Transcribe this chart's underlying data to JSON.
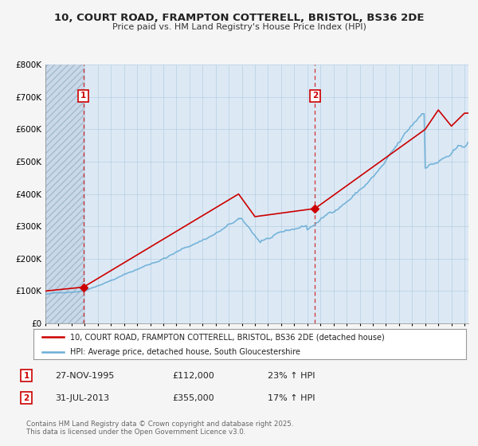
{
  "title": "10, COURT ROAD, FRAMPTON COTTERELL, BRISTOL, BS36 2DE",
  "subtitle": "Price paid vs. HM Land Registry's House Price Index (HPI)",
  "legend_line1": "10, COURT ROAD, FRAMPTON COTTERELL, BRISTOL, BS36 2DE (detached house)",
  "legend_line2": "HPI: Average price, detached house, South Gloucestershire",
  "footer": "Contains HM Land Registry data © Crown copyright and database right 2025.\nThis data is licensed under the Open Government Licence v3.0.",
  "sale1_date": "27-NOV-1995",
  "sale1_price": "£112,000",
  "sale1_hpi": "23% ↑ HPI",
  "sale2_date": "31-JUL-2013",
  "sale2_price": "£355,000",
  "sale2_hpi": "17% ↑ HPI",
  "hpi_color": "#6baed6",
  "price_color": "#cc0000",
  "sale_marker_color": "#cc0000",
  "background_color": "#f5f5f5",
  "plot_bg_color": "#dce9f5",
  "grid_color": "#b8cfe0",
  "ylim": [
    0,
    800000
  ],
  "yticks": [
    0,
    100000,
    200000,
    300000,
    400000,
    500000,
    600000,
    700000,
    800000
  ],
  "ytick_labels": [
    "£0",
    "£100K",
    "£200K",
    "£300K",
    "£400K",
    "£500K",
    "£600K",
    "£700K",
    "£800K"
  ],
  "xlim_start": 1993.0,
  "xlim_end": 2025.3,
  "sale1_year": 1995.9,
  "sale1_value": 112000,
  "sale2_year": 2013.58,
  "sale2_value": 355000,
  "hatch_end": 1995.9
}
